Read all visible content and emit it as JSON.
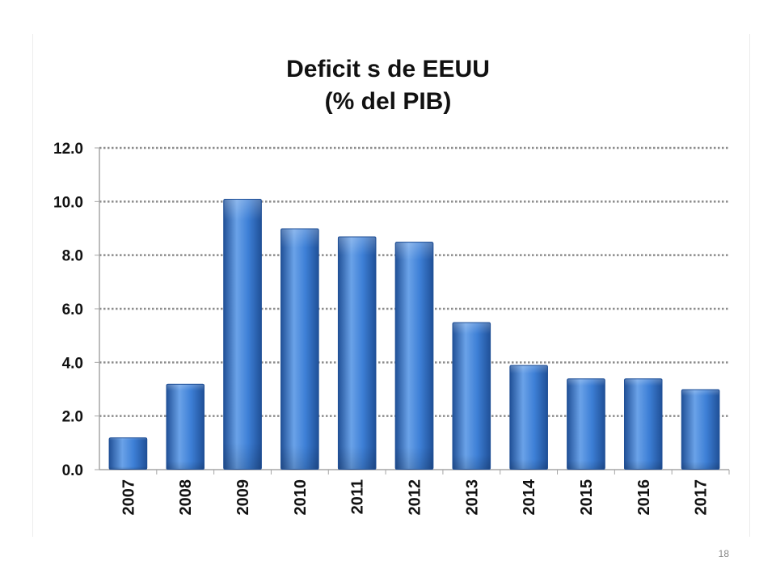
{
  "slide_number": "18",
  "chart_data": {
    "type": "bar",
    "title_line1": "Deficit s de EEUU",
    "title_line2": "(% del PIB)",
    "categories": [
      "2007",
      "2008",
      "2009",
      "2010",
      "2011",
      "2012",
      "2013",
      "2014",
      "2015",
      "2016",
      "2017"
    ],
    "values": [
      1.2,
      3.2,
      10.1,
      9.0,
      8.7,
      8.5,
      5.5,
      3.9,
      3.4,
      3.4,
      3.0
    ],
    "ylim": [
      0,
      12
    ],
    "yticks": [
      "0.0",
      "2.0",
      "4.0",
      "6.0",
      "8.0",
      "10.0",
      "12.0"
    ],
    "grid": true,
    "legend": "none",
    "colors": {
      "bar_top": "#6aa2e8",
      "bar_mid": "#3d7fd6",
      "bar_edge": "#1f4f96",
      "grid": "#8c8c8c",
      "axis": "#a6a6a6"
    }
  }
}
